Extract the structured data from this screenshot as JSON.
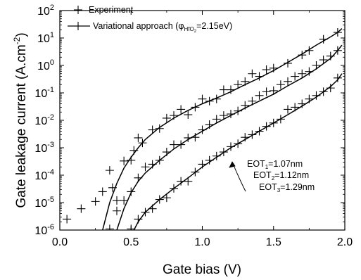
{
  "chart_data": {
    "type": "scatter",
    "xlabel": "Gate bias (V)",
    "ylabel_main": "Gate leakage current (A.cm",
    "ylabel_sup": "-2",
    "ylabel_close": ")",
    "xlim": [
      0.0,
      2.0
    ],
    "ylim": [
      1e-06,
      100
    ],
    "yscale": "log",
    "x_ticks": [
      0.0,
      0.5,
      1.0,
      1.5,
      2.0
    ],
    "x_tick_labels": [
      "0.0",
      "0.5",
      "1.0",
      "1.5",
      "2.0"
    ],
    "y_tick_exponents": [
      "-6",
      "-5",
      "-4",
      "-3",
      "-2",
      "-1",
      "0",
      "1",
      "2"
    ],
    "legend": {
      "placement": "top-left",
      "experiment_label": "Experiment",
      "model_label_main": "Variational approach (",
      "model_label_phi": "φ",
      "model_label_sub": "HfO",
      "model_label_sub2": "2",
      "model_label_tail": "=2.15eV)"
    },
    "annotations": [
      {
        "main": "EOT",
        "sub": "1",
        "tail": "=1.07nm"
      },
      {
        "main": "EOT",
        "sub": "2",
        "tail": "=1.12nm"
      },
      {
        "main": "EOT",
        "sub": "3",
        "tail": "=1.29nm"
      }
    ],
    "series": [
      {
        "kind": "experiment",
        "points": [
          [
            0.05,
            2.5e-06
          ],
          [
            0.15,
            6e-06
          ],
          [
            0.25,
            1.1e-05
          ],
          [
            0.3,
            2.5e-05
          ],
          [
            0.35,
            0.00015
          ],
          [
            0.37,
            3.5e-05
          ],
          [
            0.4,
            1.2e-05
          ],
          [
            0.45,
            0.00033
          ],
          [
            0.5,
            0.00035
          ],
          [
            0.52,
            0.0008
          ],
          [
            0.55,
            0.0023
          ],
          [
            0.58,
            0.0015
          ],
          [
            0.65,
            0.0045
          ],
          [
            0.7,
            0.005
          ],
          [
            0.75,
            0.012
          ],
          [
            0.8,
            0.015
          ],
          [
            0.85,
            0.025
          ],
          [
            0.9,
            0.016
          ],
          [
            0.95,
            0.03
          ],
          [
            1.0,
            0.06
          ],
          [
            1.05,
            0.05
          ],
          [
            1.1,
            0.06
          ],
          [
            1.15,
            0.13
          ],
          [
            1.2,
            0.13
          ],
          [
            1.25,
            0.2
          ],
          [
            1.3,
            0.26
          ],
          [
            1.35,
            0.5
          ],
          [
            1.4,
            0.4
          ],
          [
            1.45,
            0.7
          ],
          [
            1.5,
            0.8
          ],
          [
            1.6,
            1.2
          ],
          [
            1.7,
            2.4
          ],
          [
            1.75,
            3.5
          ],
          [
            1.85,
            9
          ],
          [
            1.95,
            16
          ]
        ]
      },
      {
        "kind": "experiment",
        "points": [
          [
            0.35,
            1.1e-06
          ],
          [
            0.4,
            5e-06
          ],
          [
            0.45,
            1.2e-05
          ],
          [
            0.5,
            2.5e-05
          ],
          [
            0.55,
            8e-05
          ],
          [
            0.6,
            0.0002
          ],
          [
            0.65,
            0.00025
          ],
          [
            0.7,
            0.00035
          ],
          [
            0.75,
            0.0007
          ],
          [
            0.8,
            0.0013
          ],
          [
            0.85,
            0.0013
          ],
          [
            0.9,
            0.0023
          ],
          [
            0.95,
            0.0024
          ],
          [
            1.0,
            0.0045
          ],
          [
            1.05,
            0.007
          ],
          [
            1.1,
            0.011
          ],
          [
            1.15,
            0.015
          ],
          [
            1.2,
            0.017
          ],
          [
            1.25,
            0.022
          ],
          [
            1.3,
            0.035
          ],
          [
            1.35,
            0.05
          ],
          [
            1.4,
            0.08
          ],
          [
            1.45,
            0.11
          ],
          [
            1.5,
            0.12
          ],
          [
            1.55,
            0.2
          ],
          [
            1.6,
            0.26
          ],
          [
            1.65,
            0.4
          ],
          [
            1.7,
            0.5
          ],
          [
            1.75,
            0.6
          ],
          [
            1.8,
            1.0
          ],
          [
            1.85,
            1.6
          ],
          [
            1.9,
            2.2
          ],
          [
            1.95,
            3.5
          ]
        ]
      },
      {
        "kind": "experiment",
        "points": [
          [
            0.5,
            1.1e-06
          ],
          [
            0.55,
            2.5e-06
          ],
          [
            0.6,
            4.5e-06
          ],
          [
            0.65,
            6e-06
          ],
          [
            0.7,
            1.3e-05
          ],
          [
            0.75,
            1.5e-05
          ],
          [
            0.8,
            3.3e-05
          ],
          [
            0.85,
            6e-05
          ],
          [
            0.9,
            6e-05
          ],
          [
            0.95,
            0.00013
          ],
          [
            1.0,
            0.00025
          ],
          [
            1.05,
            0.00035
          ],
          [
            1.1,
            0.0005
          ],
          [
            1.15,
            0.0007
          ],
          [
            1.2,
            0.0011
          ],
          [
            1.25,
            0.0014
          ],
          [
            1.3,
            0.0024
          ],
          [
            1.35,
            0.003
          ],
          [
            1.4,
            0.004
          ],
          [
            1.45,
            0.006
          ],
          [
            1.5,
            0.008
          ],
          [
            1.55,
            0.011
          ],
          [
            1.6,
            0.025
          ],
          [
            1.65,
            0.03
          ],
          [
            1.7,
            0.04
          ],
          [
            1.75,
            0.06
          ],
          [
            1.8,
            0.08
          ],
          [
            1.85,
            0.11
          ],
          [
            1.9,
            0.15
          ],
          [
            1.95,
            0.35
          ]
        ]
      },
      {
        "kind": "model",
        "points": [
          [
            0.3,
            1e-06
          ],
          [
            0.35,
            1e-05
          ],
          [
            0.4,
            5e-05
          ],
          [
            0.45,
            0.00018
          ],
          [
            0.5,
            0.00045
          ],
          [
            0.55,
            0.001
          ],
          [
            0.6,
            0.002
          ],
          [
            0.7,
            0.0055
          ],
          [
            0.8,
            0.012
          ],
          [
            0.9,
            0.023
          ],
          [
            1.0,
            0.04
          ],
          [
            1.1,
            0.065
          ],
          [
            1.2,
            0.11
          ],
          [
            1.3,
            0.2
          ],
          [
            1.4,
            0.35
          ],
          [
            1.5,
            0.65
          ],
          [
            1.6,
            1.3
          ],
          [
            1.7,
            2.6
          ],
          [
            1.8,
            5.5
          ],
          [
            1.9,
            11
          ],
          [
            1.95,
            16
          ],
          [
            1.98,
            22
          ]
        ]
      },
      {
        "kind": "model",
        "points": [
          [
            0.4,
            1e-06
          ],
          [
            0.45,
            6e-06
          ],
          [
            0.5,
            2.3e-05
          ],
          [
            0.55,
            6e-05
          ],
          [
            0.6,
            0.00012
          ],
          [
            0.7,
            0.00035
          ],
          [
            0.8,
            0.0009
          ],
          [
            0.9,
            0.002
          ],
          [
            1.0,
            0.004
          ],
          [
            1.1,
            0.008
          ],
          [
            1.2,
            0.015
          ],
          [
            1.3,
            0.028
          ],
          [
            1.4,
            0.05
          ],
          [
            1.5,
            0.09
          ],
          [
            1.6,
            0.18
          ],
          [
            1.7,
            0.35
          ],
          [
            1.8,
            0.75
          ],
          [
            1.9,
            1.8
          ],
          [
            1.95,
            3.5
          ],
          [
            1.98,
            5.5
          ]
        ]
      },
      {
        "kind": "model",
        "points": [
          [
            0.52,
            1e-06
          ],
          [
            0.55,
            2e-06
          ],
          [
            0.6,
            4.5e-06
          ],
          [
            0.7,
            1.3e-05
          ],
          [
            0.8,
            3.3e-05
          ],
          [
            0.9,
            8e-05
          ],
          [
            1.0,
            0.0002
          ],
          [
            1.1,
            0.00045
          ],
          [
            1.2,
            0.001
          ],
          [
            1.3,
            0.002
          ],
          [
            1.4,
            0.004
          ],
          [
            1.5,
            0.008
          ],
          [
            1.6,
            0.016
          ],
          [
            1.7,
            0.033
          ],
          [
            1.8,
            0.07
          ],
          [
            1.9,
            0.17
          ],
          [
            1.95,
            0.3
          ],
          [
            1.98,
            0.5
          ]
        ]
      }
    ]
  }
}
